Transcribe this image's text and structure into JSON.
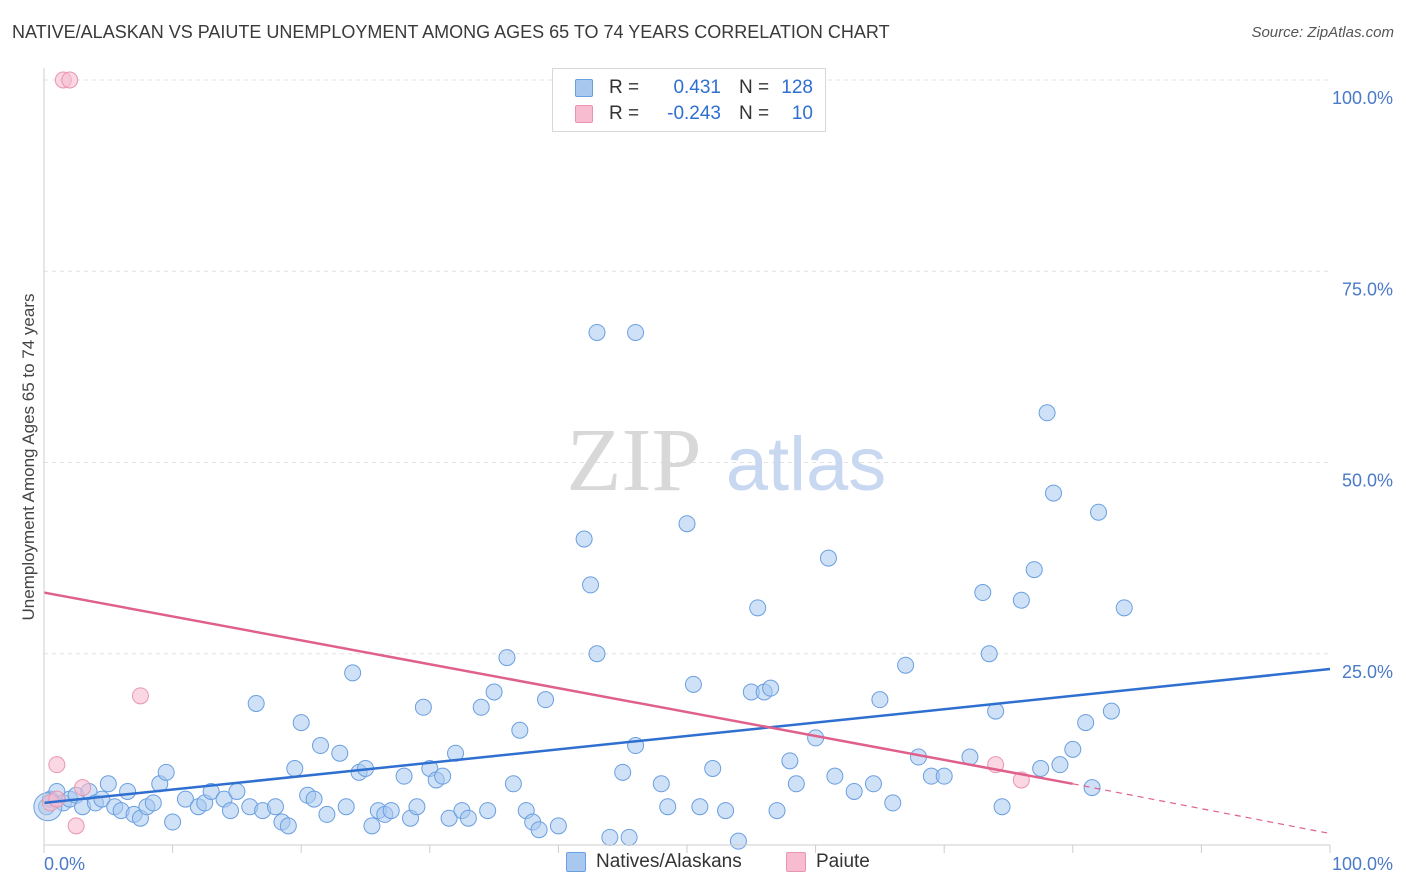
{
  "title": "NATIVE/ALASKAN VS PAIUTE UNEMPLOYMENT AMONG AGES 65 TO 74 YEARS CORRELATION CHART",
  "source": "Source: ZipAtlas.com",
  "watermark": {
    "zip": "ZIP",
    "atlas": "atlas"
  },
  "legend": {
    "rows": [
      {
        "r_label": "R =",
        "r_value": "0.431",
        "n_label": "N =",
        "n_value": "128",
        "color": "#a8c8f0",
        "border": "#6a9fe0"
      },
      {
        "r_label": "R =",
        "r_value": "-0.243",
        "n_label": "N =",
        "n_value": "10",
        "color": "#f8bcd0",
        "border": "#e896b0"
      }
    ]
  },
  "bottom_legend": [
    {
      "label": "Natives/Alaskans",
      "color": "#a8c8f0",
      "border": "#6a9fe0"
    },
    {
      "label": "Paiute",
      "color": "#f8bcd0",
      "border": "#e896b0"
    }
  ],
  "chart_data": {
    "type": "scatter",
    "xlabel": "",
    "ylabel": "Unemployment Among Ages 65 to 74 years",
    "xlim": [
      0,
      100
    ],
    "ylim": [
      0,
      100
    ],
    "x_tick_labels": [
      "0.0%",
      "100.0%"
    ],
    "y_tick_labels": [
      "25.0%",
      "50.0%",
      "75.0%",
      "100.0%"
    ],
    "y_ticks": [
      25,
      50,
      75,
      100
    ],
    "grid": true,
    "series": [
      {
        "name": "Natives/Alaskans",
        "color": "#a8c8f0",
        "stroke": "#6a9fe0",
        "trend": {
          "x": [
            0,
            100
          ],
          "y": [
            5.5,
            23
          ],
          "color": "#2e6fd0"
        },
        "points": [
          [
            0.2,
            5
          ],
          [
            0.5,
            6
          ],
          [
            1,
            7
          ],
          [
            1.5,
            5.5
          ],
          [
            2,
            6
          ],
          [
            2.5,
            6.5
          ],
          [
            3,
            5
          ],
          [
            3.5,
            7
          ],
          [
            4,
            5.5
          ],
          [
            4.5,
            6
          ],
          [
            5,
            8
          ],
          [
            5.5,
            5
          ],
          [
            6,
            4.5
          ],
          [
            6.5,
            7
          ],
          [
            7,
            4
          ],
          [
            7.5,
            3.5
          ],
          [
            8,
            5
          ],
          [
            8.5,
            5.5
          ],
          [
            9,
            8
          ],
          [
            9.5,
            9.5
          ],
          [
            10,
            3
          ],
          [
            11,
            6
          ],
          [
            12,
            5
          ],
          [
            12.5,
            5.5
          ],
          [
            13,
            7
          ],
          [
            14,
            6
          ],
          [
            14.5,
            4.5
          ],
          [
            15,
            7
          ],
          [
            16,
            5
          ],
          [
            16.5,
            18.5
          ],
          [
            17,
            4.5
          ],
          [
            18,
            5
          ],
          [
            18.5,
            3
          ],
          [
            19,
            2.5
          ],
          [
            19.5,
            10
          ],
          [
            20,
            16
          ],
          [
            20.5,
            6.5
          ],
          [
            21,
            6
          ],
          [
            21.5,
            13
          ],
          [
            22,
            4
          ],
          [
            23,
            12
          ],
          [
            23.5,
            5
          ],
          [
            24,
            22.5
          ],
          [
            24.5,
            9.5
          ],
          [
            25,
            10
          ],
          [
            25.5,
            2.5
          ],
          [
            26,
            4.5
          ],
          [
            26.5,
            4
          ],
          [
            27,
            4.5
          ],
          [
            28,
            9
          ],
          [
            28.5,
            3.5
          ],
          [
            29,
            5
          ],
          [
            29.5,
            18
          ],
          [
            30,
            10
          ],
          [
            30.5,
            8.5
          ],
          [
            31,
            9
          ],
          [
            31.5,
            3.5
          ],
          [
            32,
            12
          ],
          [
            32.5,
            4.5
          ],
          [
            33,
            3.5
          ],
          [
            34,
            18
          ],
          [
            34.5,
            4.5
          ],
          [
            35,
            20
          ],
          [
            36,
            24.5
          ],
          [
            36.5,
            8
          ],
          [
            37,
            15
          ],
          [
            37.5,
            4.5
          ],
          [
            38,
            3
          ],
          [
            38.5,
            2
          ],
          [
            39,
            19
          ],
          [
            40,
            2.5
          ],
          [
            42,
            40
          ],
          [
            42.5,
            34
          ],
          [
            43,
            25
          ],
          [
            44,
            1
          ],
          [
            45,
            9.5
          ],
          [
            45.5,
            1
          ],
          [
            46,
            13
          ],
          [
            48,
            8
          ],
          [
            48.5,
            5
          ],
          [
            50,
            42
          ],
          [
            50.5,
            21
          ],
          [
            51,
            5
          ],
          [
            52,
            10
          ],
          [
            53,
            4.5
          ],
          [
            54,
            0.5
          ],
          [
            55,
            20
          ],
          [
            55.5,
            31
          ],
          [
            56,
            20
          ],
          [
            56.5,
            20.5
          ],
          [
            57,
            4.5
          ],
          [
            58,
            11
          ],
          [
            58.5,
            8
          ],
          [
            60,
            14
          ],
          [
            61,
            37.5
          ],
          [
            61.5,
            9
          ],
          [
            63,
            7
          ],
          [
            64.5,
            8
          ],
          [
            65,
            19
          ],
          [
            66,
            5.5
          ],
          [
            67,
            23.5
          ],
          [
            68,
            11.5
          ],
          [
            69,
            9
          ],
          [
            70,
            9
          ],
          [
            72,
            11.5
          ],
          [
            73,
            33
          ],
          [
            73.5,
            25
          ],
          [
            74,
            17.5
          ],
          [
            74.5,
            5
          ],
          [
            76,
            32
          ],
          [
            77,
            36
          ],
          [
            77.5,
            10
          ],
          [
            78,
            56.5
          ],
          [
            78.5,
            46
          ],
          [
            79,
            10.5
          ],
          [
            80,
            12.5
          ],
          [
            81,
            16
          ],
          [
            81.5,
            7.5
          ],
          [
            82,
            43.5
          ],
          [
            83,
            17.5
          ],
          [
            84,
            31
          ]
        ],
        "top_points": [
          [
            43,
            67
          ],
          [
            46,
            67
          ]
        ]
      },
      {
        "name": "Paiute",
        "color": "#f8bcd0",
        "stroke": "#e896b0",
        "trend": {
          "x": [
            0,
            80
          ],
          "y": [
            33,
            8
          ],
          "dashed_to": [
            100,
            1.5
          ],
          "color": "#e0608c"
        },
        "points": [
          [
            0.5,
            5.5
          ],
          [
            1,
            6
          ],
          [
            1.5,
            100
          ],
          [
            2,
            100
          ],
          [
            1,
            10.5
          ],
          [
            2.5,
            2.5
          ],
          [
            3,
            7.5
          ],
          [
            7.5,
            19.5
          ],
          [
            74,
            10.5
          ],
          [
            76,
            8.5
          ]
        ]
      }
    ]
  }
}
